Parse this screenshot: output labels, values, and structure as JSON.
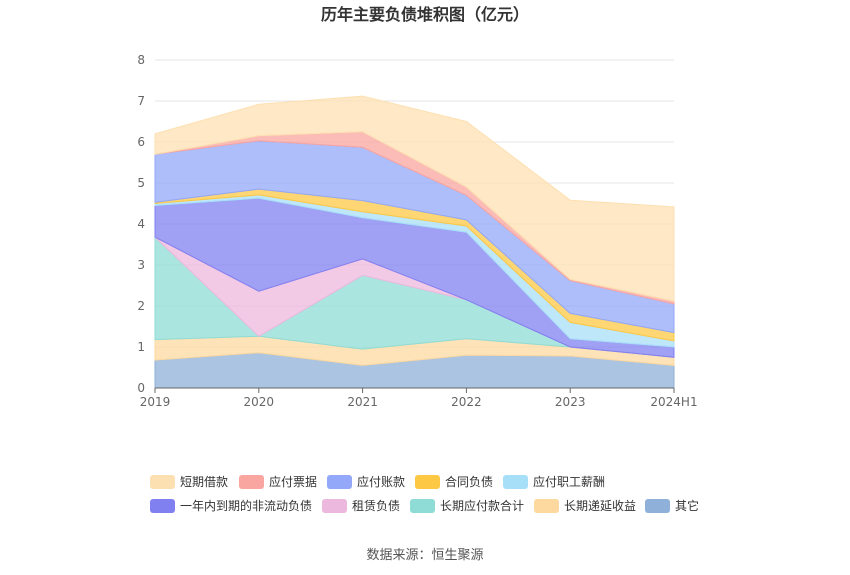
{
  "chart_data": {
    "type": "area",
    "stacked": true,
    "title": "历年主要负债堆积图（亿元）",
    "source": "数据来源：恒生聚源",
    "x": [
      "2019",
      "2020",
      "2021",
      "2022",
      "2023",
      "2024H1"
    ],
    "ylim": [
      0,
      8
    ],
    "yticks": [
      "0",
      "1",
      "2",
      "3",
      "4",
      "5",
      "6",
      "7",
      "8"
    ],
    "grid": true,
    "legend_position": "bottom",
    "series": [
      {
        "name": "其它",
        "color": "#8fb0d8",
        "values": [
          0.68,
          0.86,
          0.55,
          0.8,
          0.78,
          0.55
        ]
      },
      {
        "name": "长期递延收益",
        "color": "#fdd9a0",
        "values": [
          0.5,
          0.4,
          0.4,
          0.4,
          0.22,
          0.2
        ]
      },
      {
        "name": "长期应付款合计",
        "color": "#8fdcd6",
        "values": [
          2.5,
          0.0,
          1.8,
          0.95,
          0.0,
          0.0
        ]
      },
      {
        "name": "租赁负债",
        "color": "#edb8de",
        "values": [
          0.0,
          1.1,
          0.4,
          0.0,
          0.0,
          0.0
        ]
      },
      {
        "name": "一年内到期的非流动负债",
        "color": "#8080f0",
        "values": [
          0.77,
          2.27,
          1.0,
          1.65,
          0.2,
          0.25
        ]
      },
      {
        "name": "应付职工薪酬",
        "color": "#a8dff8",
        "values": [
          0.05,
          0.08,
          0.15,
          0.15,
          0.4,
          0.15
        ]
      },
      {
        "name": "合同负债",
        "color": "#fdc844",
        "values": [
          0.03,
          0.14,
          0.27,
          0.15,
          0.22,
          0.2
        ]
      },
      {
        "name": "应付账款",
        "color": "#93a8f8",
        "values": [
          1.17,
          1.18,
          1.3,
          0.6,
          0.8,
          0.7
        ]
      },
      {
        "name": "应付票据",
        "color": "#f9a5a0",
        "values": [
          0.0,
          0.12,
          0.38,
          0.2,
          0.03,
          0.07
        ]
      },
      {
        "name": "短期借款",
        "color": "#fde0b2",
        "values": [
          0.5,
          0.77,
          0.87,
          1.6,
          1.93,
          2.3
        ]
      }
    ],
    "legend_order": [
      "短期借款",
      "应付票据",
      "应付账款",
      "合同负债",
      "应付职工薪酬",
      "一年内到期的非流动负债",
      "租赁负债",
      "长期应付款合计",
      "长期递延收益",
      "其它"
    ]
  }
}
